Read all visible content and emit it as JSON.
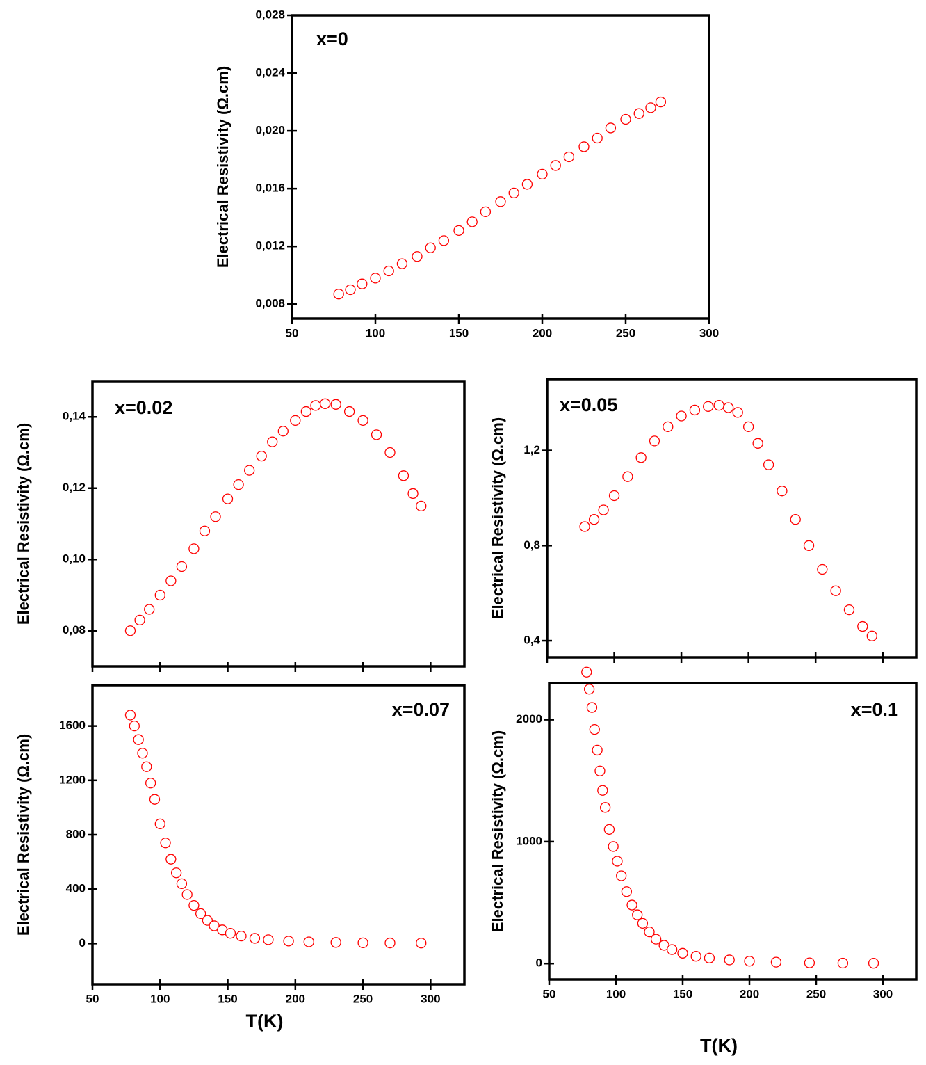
{
  "chart_data": [
    {
      "type": "scatter",
      "annotation": "x=0",
      "ylabel": "Electrical Resistivity (Ω.cm)",
      "color": "#ff0000",
      "x": [
        78,
        85,
        92,
        100,
        108,
        116,
        125,
        133,
        141,
        150,
        158,
        166,
        175,
        183,
        191,
        200,
        208,
        216,
        225,
        233,
        241,
        250,
        258,
        265,
        271
      ],
      "values": [
        0.0087,
        0.009,
        0.0094,
        0.0098,
        0.0103,
        0.0108,
        0.0113,
        0.0119,
        0.0124,
        0.0131,
        0.0137,
        0.0144,
        0.0151,
        0.0157,
        0.0163,
        0.017,
        0.0176,
        0.0182,
        0.0189,
        0.0195,
        0.0202,
        0.0208,
        0.0212,
        0.0216,
        0.022
      ],
      "xlim": [
        50,
        300
      ],
      "ylim": [
        0.007,
        0.028
      ],
      "show_xtick_labels": true,
      "xticks": [
        50,
        100,
        150,
        200,
        250,
        300
      ],
      "yticks": [
        {
          "value": 0.008,
          "label": "0,008"
        },
        {
          "value": 0.012,
          "label": "0,012"
        },
        {
          "value": 0.016,
          "label": "0,016"
        },
        {
          "value": 0.02,
          "label": "0,020"
        },
        {
          "value": 0.024,
          "label": "0,024"
        },
        {
          "value": 0.028,
          "label": "0,028"
        }
      ]
    },
    {
      "type": "scatter",
      "annotation": "x=0.02",
      "ylabel": "Electrical Resistivity (Ω.cm)",
      "color": "#ff0000",
      "x": [
        78,
        85,
        92,
        100,
        108,
        116,
        125,
        133,
        141,
        150,
        158,
        166,
        175,
        183,
        191,
        200,
        208,
        215,
        222,
        230,
        240,
        250,
        260,
        270,
        280,
        287,
        293
      ],
      "values": [
        0.08,
        0.083,
        0.086,
        0.09,
        0.094,
        0.098,
        0.103,
        0.108,
        0.112,
        0.117,
        0.121,
        0.125,
        0.129,
        0.133,
        0.136,
        0.139,
        0.1415,
        0.1432,
        0.1437,
        0.1435,
        0.1415,
        0.139,
        0.135,
        0.13,
        0.1235,
        0.1185,
        0.115
      ],
      "xlim": [
        50,
        325
      ],
      "ylim": [
        0.07,
        0.15
      ],
      "show_xtick_labels": false,
      "xticks": [
        50,
        100,
        150,
        200,
        250,
        300
      ],
      "yticks": [
        {
          "value": 0.08,
          "label": "0,08"
        },
        {
          "value": 0.1,
          "label": "0,10"
        },
        {
          "value": 0.12,
          "label": "0,12"
        },
        {
          "value": 0.14,
          "label": "0,14"
        }
      ]
    },
    {
      "type": "scatter",
      "annotation": "x=0.05",
      "ylabel": "Electrical Resistivity (Ω.cm)",
      "color": "#ff0000",
      "x": [
        78,
        85,
        92,
        100,
        110,
        120,
        130,
        140,
        150,
        160,
        170,
        178,
        185,
        192,
        200,
        207,
        215,
        225,
        235,
        245,
        255,
        265,
        275,
        285,
        292
      ],
      "values": [
        0.88,
        0.91,
        0.95,
        1.01,
        1.09,
        1.17,
        1.24,
        1.3,
        1.345,
        1.37,
        1.385,
        1.39,
        1.38,
        1.36,
        1.3,
        1.23,
        1.14,
        1.03,
        0.91,
        0.8,
        0.7,
        0.61,
        0.53,
        0.46,
        0.42
      ],
      "xlim": [
        50,
        325
      ],
      "ylim": [
        0.33,
        1.5
      ],
      "show_xtick_labels": false,
      "xticks": [
        50,
        100,
        150,
        200,
        250,
        300
      ],
      "yticks": [
        {
          "value": 0.4,
          "label": "0,4"
        },
        {
          "value": 0.8,
          "label": "0,8"
        },
        {
          "value": 1.2,
          "label": "1,2"
        }
      ]
    },
    {
      "type": "scatter",
      "annotation": "x=0.07",
      "ylabel": "Electrical Resistivity (Ω.cm)",
      "xlabel": "T(K)",
      "color": "#ff0000",
      "x": [
        78,
        81,
        84,
        87,
        90,
        93,
        96,
        100,
        104,
        108,
        112,
        116,
        120,
        125,
        130,
        135,
        140,
        146,
        152,
        160,
        170,
        180,
        195,
        210,
        230,
        250,
        270,
        293
      ],
      "values": [
        1680,
        1600,
        1500,
        1400,
        1300,
        1180,
        1060,
        880,
        740,
        620,
        520,
        440,
        360,
        280,
        220,
        170,
        130,
        100,
        75,
        55,
        38,
        28,
        18,
        12,
        8,
        5,
        4,
        3
      ],
      "xlim": [
        50,
        325
      ],
      "ylim": [
        -300,
        1900
      ],
      "show_xtick_labels": true,
      "xticks": [
        50,
        100,
        150,
        200,
        250,
        300
      ],
      "yticks": [
        0,
        400,
        800,
        1200,
        1600
      ]
    },
    {
      "type": "scatter",
      "annotation": "x=0.1",
      "ylabel": "Electrical Resistivity (Ω.cm)",
      "xlabel": "T(K)",
      "color": "#ff0000",
      "x": [
        78,
        80,
        82,
        84,
        86,
        88,
        90,
        92,
        95,
        98,
        101,
        104,
        108,
        112,
        116,
        120,
        125,
        130,
        136,
        142,
        150,
        160,
        170,
        185,
        200,
        220,
        245,
        270,
        293
      ],
      "values": [
        2390,
        2250,
        2100,
        1920,
        1750,
        1580,
        1420,
        1280,
        1100,
        960,
        840,
        720,
        590,
        480,
        400,
        330,
        260,
        200,
        150,
        115,
        85,
        60,
        45,
        30,
        20,
        12,
        6,
        4,
        3
      ],
      "xlim": [
        50,
        325
      ],
      "ylim": [
        -130,
        2300
      ],
      "show_xtick_labels": true,
      "xticks": [
        50,
        100,
        150,
        200,
        250,
        300
      ],
      "yticks": [
        0,
        1000,
        2000
      ]
    }
  ]
}
